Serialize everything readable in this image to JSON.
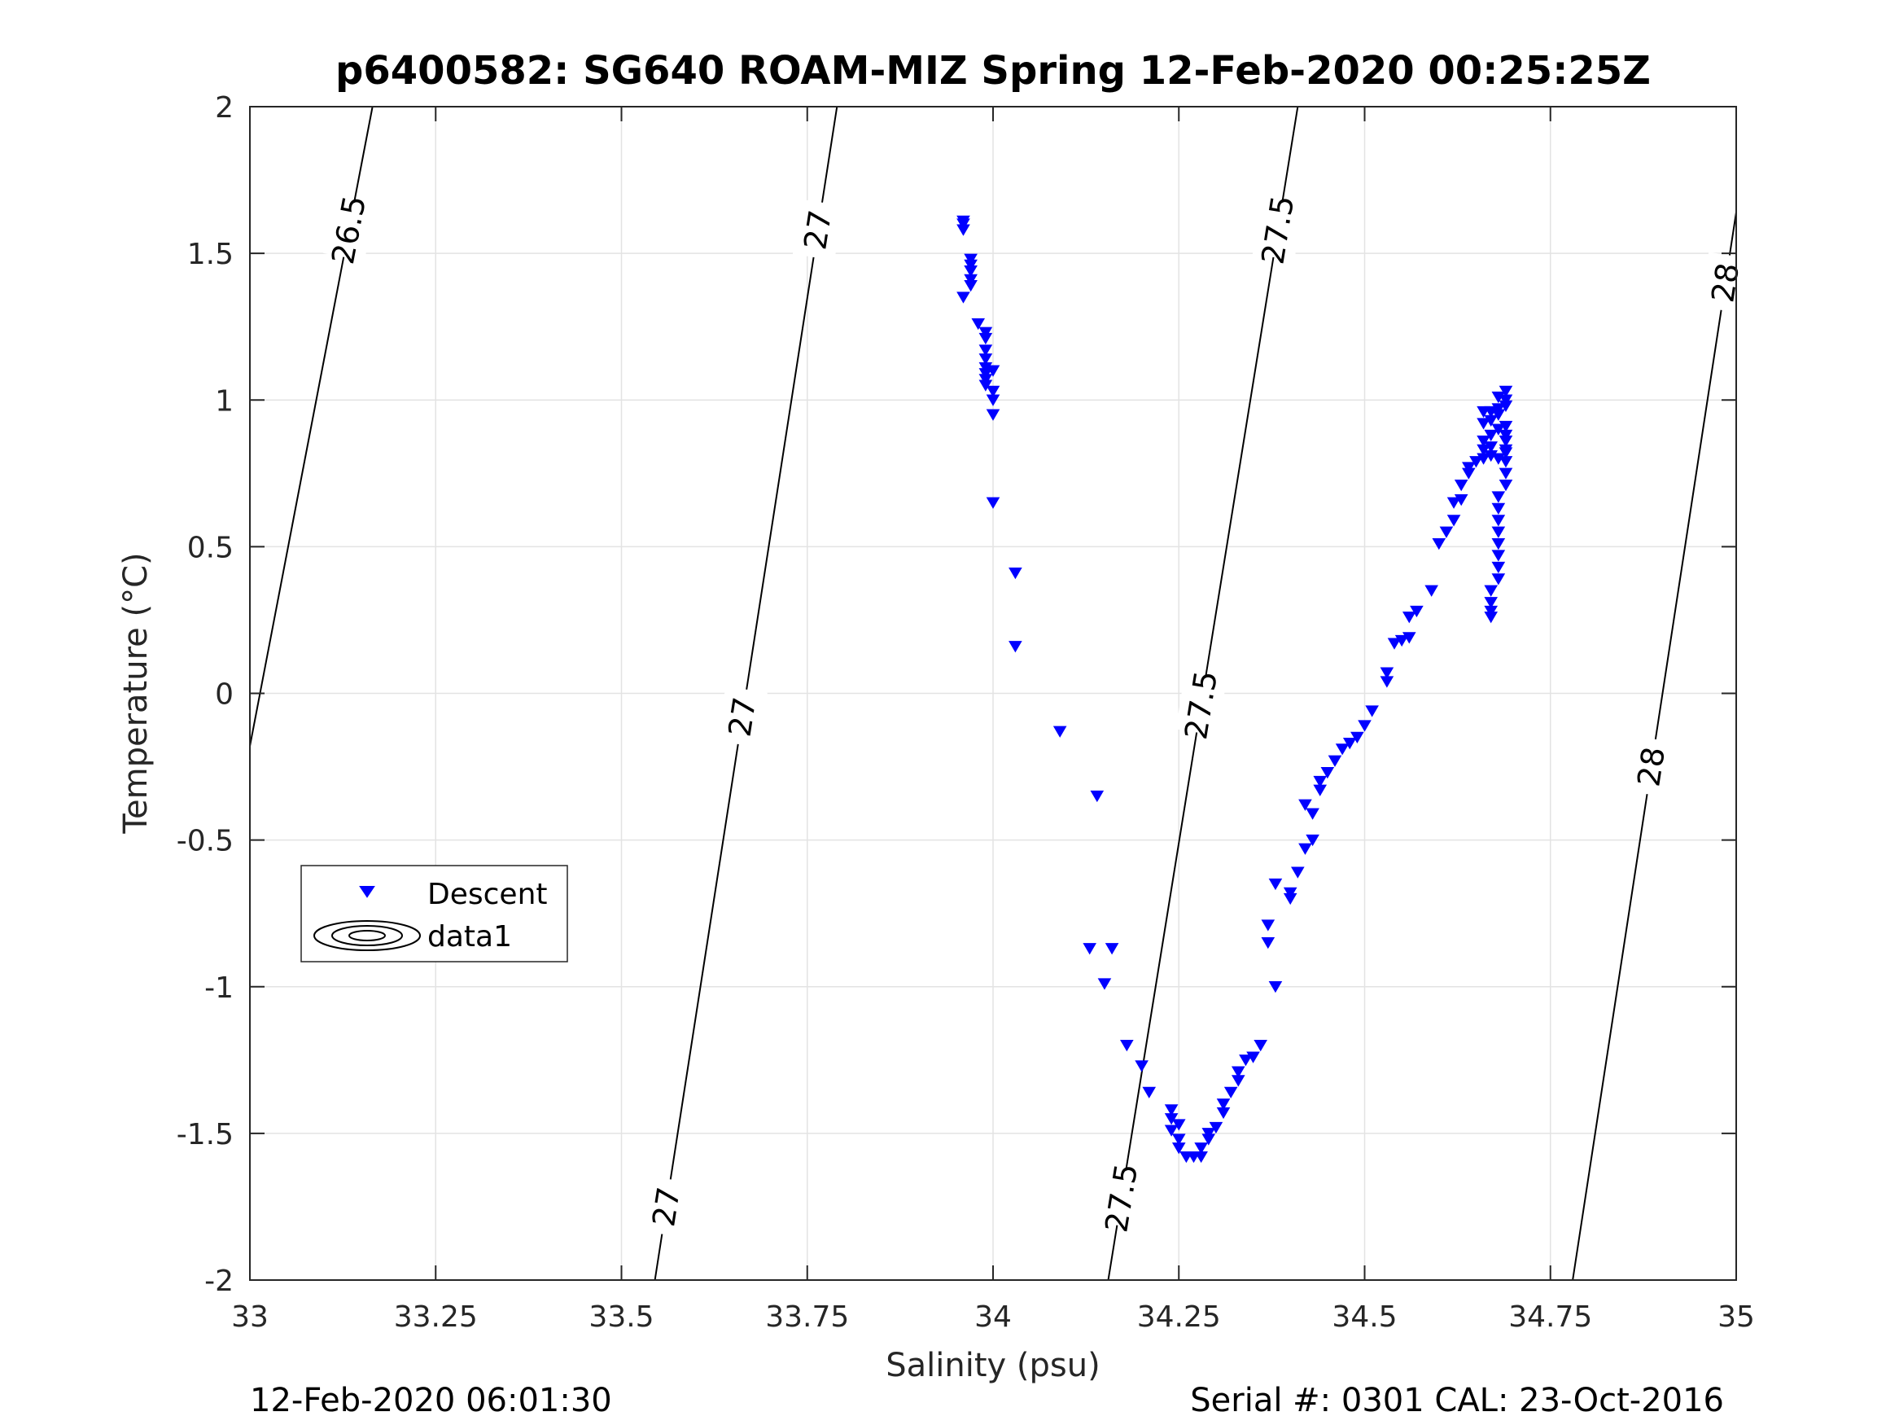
{
  "chart_data": {
    "type": "scatter",
    "title": "p6400582: SG640 ROAM-MIZ Spring 12-Feb-2020 00:25:25Z",
    "xlabel": "Salinity (psu)",
    "ylabel": "Temperature (°C)",
    "xlim": [
      33,
      35
    ],
    "ylim": [
      -2,
      2
    ],
    "xticks": [
      "33",
      "33.25",
      "33.5",
      "33.75",
      "34",
      "34.25",
      "34.5",
      "34.75",
      "35"
    ],
    "yticks": [
      "2",
      "1.5",
      "1",
      "0.5",
      "0",
      "-0.5",
      "-1",
      "-1.5",
      "-2"
    ],
    "grid": true,
    "legend": {
      "position": "left-middle",
      "entries": [
        "Descent",
        "data1"
      ]
    },
    "series": [
      {
        "name": "Descent",
        "marker": "triangle-down",
        "color": "#0000ff",
        "points": [
          [
            33.96,
            1.61
          ],
          [
            33.96,
            1.6
          ],
          [
            33.96,
            1.58
          ],
          [
            33.97,
            1.48
          ],
          [
            33.97,
            1.46
          ],
          [
            33.97,
            1.44
          ],
          [
            33.97,
            1.41
          ],
          [
            33.97,
            1.39
          ],
          [
            33.96,
            1.35
          ],
          [
            33.98,
            1.26
          ],
          [
            33.99,
            1.23
          ],
          [
            33.99,
            1.21
          ],
          [
            33.99,
            1.17
          ],
          [
            33.99,
            1.14
          ],
          [
            33.99,
            1.11
          ],
          [
            33.99,
            1.09
          ],
          [
            34.0,
            1.1
          ],
          [
            33.99,
            1.07
          ],
          [
            33.99,
            1.05
          ],
          [
            34.0,
            1.03
          ],
          [
            34.0,
            1.0
          ],
          [
            34.0,
            0.95
          ],
          [
            34.0,
            0.65
          ],
          [
            34.03,
            0.41
          ],
          [
            34.03,
            0.16
          ],
          [
            34.09,
            -0.13
          ],
          [
            34.14,
            -0.35
          ],
          [
            34.13,
            -0.87
          ],
          [
            34.16,
            -0.87
          ],
          [
            34.15,
            -0.99
          ],
          [
            34.18,
            -1.2
          ],
          [
            34.2,
            -1.27
          ],
          [
            34.21,
            -1.36
          ],
          [
            34.24,
            -1.42
          ],
          [
            34.24,
            -1.45
          ],
          [
            34.25,
            -1.47
          ],
          [
            34.24,
            -1.49
          ],
          [
            34.25,
            -1.52
          ],
          [
            34.25,
            -1.55
          ],
          [
            34.26,
            -1.58
          ],
          [
            34.27,
            -1.58
          ],
          [
            34.28,
            -1.58
          ],
          [
            34.28,
            -1.55
          ],
          [
            34.29,
            -1.52
          ],
          [
            34.29,
            -1.5
          ],
          [
            34.3,
            -1.48
          ],
          [
            34.31,
            -1.43
          ],
          [
            34.31,
            -1.4
          ],
          [
            34.32,
            -1.36
          ],
          [
            34.33,
            -1.32
          ],
          [
            34.33,
            -1.29
          ],
          [
            34.34,
            -1.25
          ],
          [
            34.35,
            -1.24
          ],
          [
            34.36,
            -1.2
          ],
          [
            34.37,
            -0.85
          ],
          [
            34.37,
            -0.79
          ],
          [
            34.38,
            -1.0
          ],
          [
            34.38,
            -0.65
          ],
          [
            34.4,
            -0.7
          ],
          [
            34.4,
            -0.68
          ],
          [
            34.41,
            -0.61
          ],
          [
            34.42,
            -0.53
          ],
          [
            34.43,
            -0.5
          ],
          [
            34.42,
            -0.38
          ],
          [
            34.43,
            -0.41
          ],
          [
            34.44,
            -0.33
          ],
          [
            34.44,
            -0.3
          ],
          [
            34.45,
            -0.27
          ],
          [
            34.46,
            -0.23
          ],
          [
            34.47,
            -0.19
          ],
          [
            34.48,
            -0.17
          ],
          [
            34.49,
            -0.15
          ],
          [
            34.5,
            -0.11
          ],
          [
            34.51,
            -0.06
          ],
          [
            34.53,
            0.04
          ],
          [
            34.53,
            0.07
          ],
          [
            34.54,
            0.17
          ],
          [
            34.55,
            0.18
          ],
          [
            34.56,
            0.19
          ],
          [
            34.56,
            0.26
          ],
          [
            34.57,
            0.28
          ],
          [
            34.59,
            0.35
          ],
          [
            34.6,
            0.51
          ],
          [
            34.61,
            0.55
          ],
          [
            34.62,
            0.59
          ],
          [
            34.62,
            0.65
          ],
          [
            34.63,
            0.66
          ],
          [
            34.63,
            0.71
          ],
          [
            34.64,
            0.75
          ],
          [
            34.64,
            0.77
          ],
          [
            34.65,
            0.79
          ],
          [
            34.66,
            0.8
          ],
          [
            34.67,
            0.81
          ],
          [
            34.68,
            0.8
          ],
          [
            34.69,
            0.82
          ],
          [
            34.66,
            0.83
          ],
          [
            34.67,
            0.84
          ],
          [
            34.66,
            0.86
          ],
          [
            34.67,
            0.88
          ],
          [
            34.68,
            0.9
          ],
          [
            34.66,
            0.92
          ],
          [
            34.67,
            0.93
          ],
          [
            34.69,
            0.91
          ],
          [
            34.68,
            0.95
          ],
          [
            34.66,
            0.96
          ],
          [
            34.67,
            0.96
          ],
          [
            34.68,
            0.97
          ],
          [
            34.69,
            0.98
          ],
          [
            34.69,
            1.0
          ],
          [
            34.69,
            1.03
          ],
          [
            34.68,
            1.01
          ],
          [
            34.69,
            0.88
          ],
          [
            34.69,
            0.86
          ],
          [
            34.69,
            0.83
          ],
          [
            34.69,
            0.79
          ],
          [
            34.69,
            0.75
          ],
          [
            34.69,
            0.71
          ],
          [
            34.68,
            0.67
          ],
          [
            34.68,
            0.63
          ],
          [
            34.68,
            0.59
          ],
          [
            34.68,
            0.55
          ],
          [
            34.68,
            0.51
          ],
          [
            34.68,
            0.47
          ],
          [
            34.68,
            0.43
          ],
          [
            34.68,
            0.39
          ],
          [
            34.67,
            0.35
          ],
          [
            34.67,
            0.31
          ],
          [
            34.67,
            0.28
          ],
          [
            34.67,
            0.26
          ]
        ]
      }
    ],
    "contour_label_text": [
      "26.5",
      "27",
      "27",
      "27",
      "27.5",
      "27.5",
      "27.5",
      "28",
      "28"
    ]
  },
  "footer": {
    "left": "12-Feb-2020 06:01:30",
    "right": "Serial #: 0301  CAL: 23-Oct-2016"
  }
}
